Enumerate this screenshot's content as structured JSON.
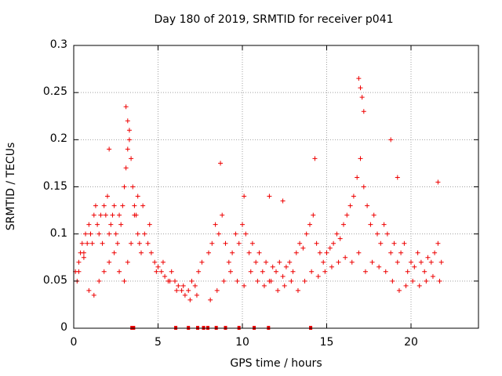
{
  "chart_data": {
    "type": "scatter",
    "title": "Day 180 of 2019, SRMTID for receiver p041",
    "xlabel": "GPS time / hours",
    "ylabel": "SRMTID / TECUs",
    "xlim": [
      0,
      24
    ],
    "ylim": [
      0,
      0.3
    ],
    "x_ticks": [
      0,
      5,
      10,
      15,
      20
    ],
    "y_ticks": [
      0,
      0.05,
      0.1,
      0.15,
      0.2,
      0.25,
      0.3
    ],
    "x_tick_labels": [
      "0",
      "5",
      "10",
      "15",
      "20"
    ],
    "y_tick_labels": [
      "0",
      "0.05",
      "0.1",
      "0.15",
      "0.2",
      "0.25",
      "0.3"
    ],
    "grid": true,
    "marker": "plus",
    "color": "#ee0000",
    "series": [
      {
        "name": "SRMTID",
        "x": [
          0.1,
          0.2,
          0.3,
          0.4,
          0.5,
          0.6,
          0.7,
          0.8,
          0.9,
          1.0,
          1.1,
          1.2,
          1.3,
          1.4,
          1.5,
          1.6,
          1.7,
          1.8,
          1.9,
          2.0,
          2.1,
          2.2,
          2.3,
          2.4,
          2.5,
          2.6,
          2.7,
          2.8,
          2.9,
          3.0,
          3.1,
          3.2,
          3.3,
          3.4,
          3.5,
          3.6,
          3.7,
          3.8,
          3.9,
          4.0,
          4.2,
          4.4,
          4.6,
          4.8,
          5.0,
          5.2,
          5.4,
          5.6,
          5.8,
          6.0,
          6.2,
          6.4,
          6.6,
          6.8,
          7.0,
          7.2,
          7.4,
          7.6,
          8.0,
          8.2,
          8.4,
          8.6,
          8.8,
          9.0,
          9.2,
          9.4,
          9.6,
          9.8,
          10.0,
          10.2,
          10.4,
          10.6,
          10.8,
          11.0,
          11.2,
          11.4,
          11.6,
          11.8,
          12.0,
          12.2,
          12.4,
          12.6,
          12.8,
          13.0,
          13.2,
          13.4,
          13.6,
          13.8,
          14.0,
          14.2,
          14.4,
          14.6,
          14.8,
          15.0,
          15.2,
          15.4,
          15.6,
          15.8,
          16.0,
          16.2,
          16.4,
          16.6,
          16.8,
          17.0,
          17.2,
          17.4,
          17.6,
          17.8,
          18.0,
          18.2,
          18.4,
          18.6,
          18.8,
          19.0,
          19.2,
          19.4,
          19.6,
          19.8,
          20.0,
          20.2,
          20.4,
          20.6,
          20.8,
          21.0,
          21.2,
          21.4,
          21.6,
          21.8,
          0.3,
          0.6,
          0.9,
          1.2,
          1.5,
          1.8,
          2.1,
          2.4,
          2.7,
          3.0,
          3.2,
          3.4,
          3.6,
          3.8,
          4.1,
          4.5,
          4.9,
          5.3,
          5.7,
          6.1,
          6.5,
          6.9,
          7.3,
          8.1,
          8.5,
          8.9,
          9.3,
          9.7,
          10.1,
          10.5,
          10.9,
          11.3,
          11.7,
          12.1,
          12.5,
          12.9,
          13.3,
          13.7,
          14.1,
          14.5,
          14.9,
          15.3,
          15.7,
          16.1,
          16.5,
          16.9,
          17.3,
          17.7,
          18.1,
          18.5,
          18.9,
          19.3,
          19.7,
          20.1,
          20.5,
          20.9,
          21.3,
          21.7,
          3.1,
          3.2,
          3.3,
          16.9,
          17.0,
          17.1,
          17.2,
          2.1,
          8.7,
          14.3,
          18.8,
          19.2,
          21.6,
          10.1,
          11.6,
          12.4
        ],
        "y": [
          0.06,
          0.05,
          0.07,
          0.08,
          0.09,
          0.08,
          0.1,
          0.09,
          0.11,
          0.1,
          0.09,
          0.12,
          0.13,
          0.11,
          0.1,
          0.12,
          0.09,
          0.13,
          0.12,
          0.14,
          0.1,
          0.11,
          0.12,
          0.13,
          0.1,
          0.09,
          0.12,
          0.11,
          0.13,
          0.15,
          0.17,
          0.19,
          0.2,
          0.18,
          0.15,
          0.13,
          0.12,
          0.1,
          0.09,
          0.08,
          0.1,
          0.09,
          0.08,
          0.07,
          0.065,
          0.06,
          0.055,
          0.05,
          0.06,
          0.05,
          0.045,
          0.04,
          0.035,
          0.04,
          0.05,
          0.045,
          0.06,
          0.07,
          0.08,
          0.09,
          0.11,
          0.1,
          0.12,
          0.09,
          0.07,
          0.08,
          0.1,
          0.09,
          0.11,
          0.1,
          0.08,
          0.09,
          0.07,
          0.08,
          0.06,
          0.07,
          0.05,
          0.065,
          0.06,
          0.07,
          0.055,
          0.065,
          0.07,
          0.06,
          0.08,
          0.09,
          0.085,
          0.1,
          0.11,
          0.12,
          0.09,
          0.08,
          0.07,
          0.08,
          0.085,
          0.09,
          0.1,
          0.095,
          0.11,
          0.12,
          0.13,
          0.14,
          0.16,
          0.18,
          0.15,
          0.13,
          0.11,
          0.12,
          0.1,
          0.09,
          0.11,
          0.1,
          0.08,
          0.09,
          0.07,
          0.08,
          0.09,
          0.06,
          0.07,
          0.065,
          0.08,
          0.07,
          0.06,
          0.075,
          0.07,
          0.08,
          0.09,
          0.07,
          0.06,
          0.075,
          0.04,
          0.035,
          0.05,
          0.06,
          0.07,
          0.08,
          0.06,
          0.05,
          0.07,
          0.09,
          0.12,
          0.14,
          0.13,
          0.11,
          0.06,
          0.07,
          0.05,
          0.04,
          0.045,
          0.03,
          0.035,
          0.03,
          0.04,
          0.05,
          0.06,
          0.05,
          0.045,
          0.06,
          0.05,
          0.045,
          0.05,
          0.04,
          0.045,
          0.05,
          0.04,
          0.05,
          0.06,
          0.055,
          0.06,
          0.065,
          0.07,
          0.075,
          0.07,
          0.08,
          0.06,
          0.07,
          0.065,
          0.06,
          0.05,
          0.04,
          0.045,
          0.05,
          0.045,
          0.05,
          0.055,
          0.05,
          0.235,
          0.22,
          0.21,
          0.265,
          0.255,
          0.245,
          0.23,
          0.19,
          0.175,
          0.18,
          0.2,
          0.16,
          0.155,
          0.14,
          0.14,
          0.135
        ]
      }
    ],
    "gap_markers_x": [
      3.45,
      3.5,
      3.55,
      6.05,
      6.8,
      7.35,
      7.7,
      7.95,
      8.45,
      9.0,
      9.8,
      10.7,
      11.55,
      14.05
    ]
  }
}
